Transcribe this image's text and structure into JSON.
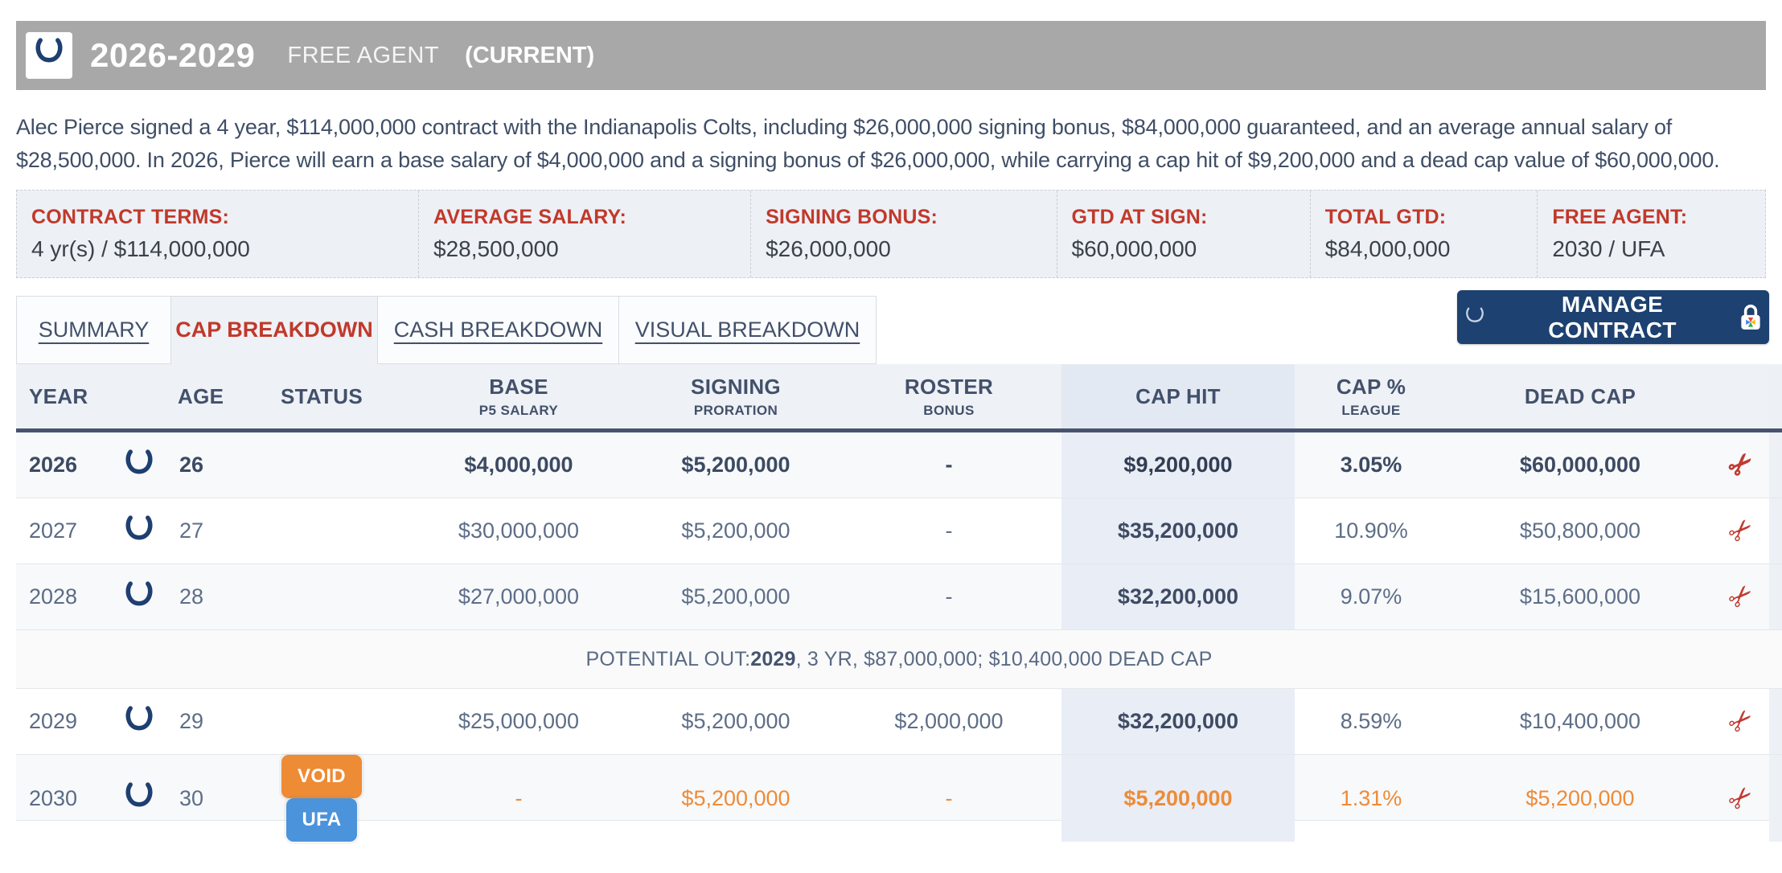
{
  "header": {
    "title": "2026-2029",
    "free_agent_label": "FREE AGENT",
    "current_label": "(CURRENT)"
  },
  "description": "Alec Pierce signed a 4 year, $114,000,000 contract with the Indianapolis Colts, including $26,000,000 signing bonus, $84,000,000 guaranteed, and an average annual salary of $28,500,000. In 2026, Pierce will earn a base salary of $4,000,000 and a signing bonus of $26,000,000, while carrying a cap hit of $9,200,000 and a dead cap value of $60,000,000.",
  "terms": [
    {
      "label": "CONTRACT TERMS:",
      "value": "4 yr(s) / $114,000,000"
    },
    {
      "label": "AVERAGE SALARY:",
      "value": "$28,500,000"
    },
    {
      "label": "SIGNING BONUS:",
      "value": "$26,000,000"
    },
    {
      "label": "GTD AT SIGN:",
      "value": "$60,000,000"
    },
    {
      "label": "TOTAL GTD:",
      "value": "$84,000,000"
    },
    {
      "label": "FREE AGENT:",
      "value": "2030 / UFA"
    }
  ],
  "tabs": [
    {
      "label": "SUMMARY",
      "active": false
    },
    {
      "label": "CAP BREAKDOWN",
      "active": true
    },
    {
      "label": "CASH BREAKDOWN",
      "active": false
    },
    {
      "label": "VISUAL BREAKDOWN",
      "active": false
    }
  ],
  "manage_button": {
    "label": "MANAGE CONTRACT"
  },
  "icons": {
    "cut": "✂",
    "team_logo_name": "colts-horseshoe",
    "lock_name": "premium-lock"
  },
  "colors": {
    "accent_red": "#c0392b",
    "navy_button": "#1d4170",
    "colts_navy": "#1e3f70",
    "orange": "#ee8b37",
    "badge_void": "#ee8b35",
    "badge_ufa": "#4b93db",
    "header_gray": "#a8a8a8"
  },
  "table": {
    "columns": [
      {
        "key": "year",
        "label": "YEAR",
        "sub": ""
      },
      {
        "key": "logo",
        "label": "",
        "sub": ""
      },
      {
        "key": "age",
        "label": "AGE",
        "sub": ""
      },
      {
        "key": "status",
        "label": "STATUS",
        "sub": ""
      },
      {
        "key": "base",
        "label": "BASE",
        "sub": "P5 SALARY"
      },
      {
        "key": "signing",
        "label": "SIGNING",
        "sub": "PRORATION"
      },
      {
        "key": "roster",
        "label": "ROSTER",
        "sub": "BONUS"
      },
      {
        "key": "caphit",
        "label": "CAP HIT",
        "sub": ""
      },
      {
        "key": "cappct",
        "label": "CAP %",
        "sub": "LEAGUE"
      },
      {
        "key": "deadcap",
        "label": "DEAD CAP",
        "sub": ""
      },
      {
        "key": "cut",
        "label": "",
        "sub": ""
      },
      {
        "key": "edge",
        "label": "",
        "sub": ""
      }
    ],
    "rows": [
      {
        "type": "year",
        "year": "2026",
        "age": "26",
        "status": [],
        "base": "$4,000,000",
        "signing": "$5,200,000",
        "roster": "-",
        "caphit": "$9,200,000",
        "cappct": "3.05%",
        "deadcap": "$60,000,000",
        "emphasis": "bold",
        "stripe": true,
        "tone": ""
      },
      {
        "type": "year",
        "year": "2027",
        "age": "27",
        "status": [],
        "base": "$30,000,000",
        "signing": "$5,200,000",
        "roster": "-",
        "caphit": "$35,200,000",
        "cappct": "10.90%",
        "deadcap": "$50,800,000",
        "emphasis": "",
        "stripe": false,
        "tone": ""
      },
      {
        "type": "year",
        "year": "2028",
        "age": "28",
        "status": [],
        "base": "$27,000,000",
        "signing": "$5,200,000",
        "roster": "-",
        "caphit": "$32,200,000",
        "cappct": "9.07%",
        "deadcap": "$15,600,000",
        "emphasis": "",
        "stripe": true,
        "tone": ""
      },
      {
        "type": "note",
        "parts": [
          "POTENTIAL OUT: ",
          "2029",
          ", 3 YR, $87,000,000; $10,400,000 DEAD CAP"
        ]
      },
      {
        "type": "year",
        "year": "2029",
        "age": "29",
        "status": [],
        "base": "$25,000,000",
        "signing": "$5,200,000",
        "roster": "$2,000,000",
        "caphit": "$32,200,000",
        "cappct": "8.59%",
        "deadcap": "$10,400,000",
        "emphasis": "",
        "stripe": false,
        "tone": ""
      },
      {
        "type": "year",
        "year": "2030",
        "age": "30",
        "status": [
          {
            "label": "VOID",
            "kind": "void"
          },
          {
            "label": "UFA",
            "kind": "ufa"
          }
        ],
        "base": "-",
        "signing": "$5,200,000",
        "roster": "-",
        "caphit": "$5,200,000",
        "cappct": "1.31%",
        "deadcap": "$5,200,000",
        "emphasis": "",
        "stripe": true,
        "tone": "orange"
      }
    ]
  }
}
